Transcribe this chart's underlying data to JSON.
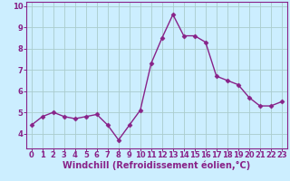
{
  "x": [
    0,
    1,
    2,
    3,
    4,
    5,
    6,
    7,
    8,
    9,
    10,
    11,
    12,
    13,
    14,
    15,
    16,
    17,
    18,
    19,
    20,
    21,
    22,
    23
  ],
  "y": [
    4.4,
    4.8,
    5.0,
    4.8,
    4.7,
    4.8,
    4.9,
    4.4,
    3.7,
    4.4,
    5.1,
    7.3,
    8.5,
    9.6,
    8.6,
    8.6,
    8.3,
    6.7,
    6.5,
    6.3,
    5.7,
    5.3,
    5.3,
    5.5
  ],
  "line_color": "#882288",
  "marker": "D",
  "marker_size": 2.5,
  "linewidth": 1.0,
  "background_color": "#cceeff",
  "grid_color": "#aacccc",
  "xlabel": "Windchill (Refroidissement éolien,°C)",
  "xlabel_fontsize": 7,
  "xlabel_color": "#882288",
  "tick_color": "#882288",
  "tick_fontsize": 6,
  "ylim": [
    3.3,
    10.2
  ],
  "xlim": [
    -0.5,
    23.5
  ],
  "yticks": [
    4,
    5,
    6,
    7,
    8,
    9,
    10
  ],
  "xticks": [
    0,
    1,
    2,
    3,
    4,
    5,
    6,
    7,
    8,
    9,
    10,
    11,
    12,
    13,
    14,
    15,
    16,
    17,
    18,
    19,
    20,
    21,
    22,
    23
  ],
  "spine_color": "#882288"
}
